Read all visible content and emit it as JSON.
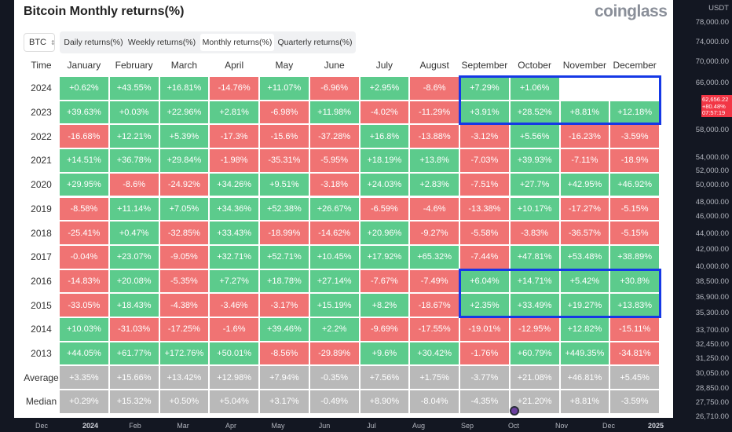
{
  "header": {
    "title": "Bitcoin Monthly returns(%)",
    "logo": "coinglass"
  },
  "selector": {
    "label": "BTC"
  },
  "tabs": [
    "Daily returns(%)",
    "Weekly returns(%)",
    "Monthly returns(%)",
    "Quarterly returns(%)"
  ],
  "active_tab": 2,
  "table": {
    "columns": [
      "Time",
      "January",
      "February",
      "March",
      "April",
      "May",
      "June",
      "July",
      "August",
      "September",
      "October",
      "November",
      "December"
    ],
    "rows": [
      {
        "label": "2024",
        "cells": [
          "+0.62%",
          "+43.55%",
          "+16.81%",
          "-14.76%",
          "+11.07%",
          "-6.96%",
          "+2.95%",
          "-8.6%",
          "+7.29%",
          "+1.06%",
          null,
          null
        ]
      },
      {
        "label": "2023",
        "cells": [
          "+39.63%",
          "+0.03%",
          "+22.96%",
          "+2.81%",
          "-6.98%",
          "+11.98%",
          "-4.02%",
          "-11.29%",
          "+3.91%",
          "+28.52%",
          "+8.81%",
          "+12.18%"
        ]
      },
      {
        "label": "2022",
        "cells": [
          "-16.68%",
          "+12.21%",
          "+5.39%",
          "-17.3%",
          "-15.6%",
          "-37.28%",
          "+16.8%",
          "-13.88%",
          "-3.12%",
          "+5.56%",
          "-16.23%",
          "-3.59%"
        ]
      },
      {
        "label": "2021",
        "cells": [
          "+14.51%",
          "+36.78%",
          "+29.84%",
          "-1.98%",
          "-35.31%",
          "-5.95%",
          "+18.19%",
          "+13.8%",
          "-7.03%",
          "+39.93%",
          "-7.11%",
          "-18.9%"
        ]
      },
      {
        "label": "2020",
        "cells": [
          "+29.95%",
          "-8.6%",
          "-24.92%",
          "+34.26%",
          "+9.51%",
          "-3.18%",
          "+24.03%",
          "+2.83%",
          "-7.51%",
          "+27.7%",
          "+42.95%",
          "+46.92%"
        ]
      },
      {
        "label": "2019",
        "cells": [
          "-8.58%",
          "+11.14%",
          "+7.05%",
          "+34.36%",
          "+52.38%",
          "+26.67%",
          "-6.59%",
          "-4.6%",
          "-13.38%",
          "+10.17%",
          "-17.27%",
          "-5.15%"
        ]
      },
      {
        "label": "2018",
        "cells": [
          "-25.41%",
          "+0.47%",
          "-32.85%",
          "+33.43%",
          "-18.99%",
          "-14.62%",
          "+20.96%",
          "-9.27%",
          "-5.58%",
          "-3.83%",
          "-36.57%",
          "-5.15%"
        ]
      },
      {
        "label": "2017",
        "cells": [
          "-0.04%",
          "+23.07%",
          "-9.05%",
          "+32.71%",
          "+52.71%",
          "+10.45%",
          "+17.92%",
          "+65.32%",
          "-7.44%",
          "+47.81%",
          "+53.48%",
          "+38.89%"
        ]
      },
      {
        "label": "2016",
        "cells": [
          "-14.83%",
          "+20.08%",
          "-5.35%",
          "+7.27%",
          "+18.78%",
          "+27.14%",
          "-7.67%",
          "-7.49%",
          "+6.04%",
          "+14.71%",
          "+5.42%",
          "+30.8%"
        ]
      },
      {
        "label": "2015",
        "cells": [
          "-33.05%",
          "+18.43%",
          "-4.38%",
          "-3.46%",
          "-3.17%",
          "+15.19%",
          "+8.2%",
          "-18.67%",
          "+2.35%",
          "+33.49%",
          "+19.27%",
          "+13.83%"
        ]
      },
      {
        "label": "2014",
        "cells": [
          "+10.03%",
          "-31.03%",
          "-17.25%",
          "-1.6%",
          "+39.46%",
          "+2.2%",
          "-9.69%",
          "-17.55%",
          "-19.01%",
          "-12.95%",
          "+12.82%",
          "-15.11%"
        ]
      },
      {
        "label": "2013",
        "cells": [
          "+44.05%",
          "+61.77%",
          "+172.76%",
          "+50.01%",
          "-8.56%",
          "-29.89%",
          "+9.6%",
          "+30.42%",
          "-1.76%",
          "+60.79%",
          "+449.35%",
          "-34.81%"
        ]
      }
    ],
    "summary_rows": [
      {
        "label": "Average",
        "cells": [
          "+3.35%",
          "+15.66%",
          "+13.42%",
          "+12.98%",
          "+7.94%",
          "-0.35%",
          "+7.56%",
          "+1.75%",
          "-3.77%",
          "+21.08%",
          "+46.81%",
          "+5.45%"
        ]
      },
      {
        "label": "Median",
        "cells": [
          "+0.29%",
          "+15.32%",
          "+0.50%",
          "+5.04%",
          "+3.17%",
          "-0.49%",
          "+8.90%",
          "-8.04%",
          "-4.35%",
          "+21.20%",
          "+8.81%",
          "-3.59%"
        ]
      }
    ]
  },
  "price_axis": {
    "unit": "USDT",
    "labels": [
      "78,000.00",
      "74,000.00",
      "70,000.00",
      "66,000.00",
      "58,000.00",
      "54,000.00",
      "52,000.00",
      "50,000.00",
      "48,000.00",
      "46,000.00",
      "44,000.00",
      "42,000.00",
      "40,000.00",
      "38,500.00",
      "36,900.00",
      "35,300.00",
      "33,700.00",
      "32,450.00",
      "31,250.00",
      "30,050.00",
      "28,850.00",
      "27,750.00",
      "26,710.00"
    ],
    "badge": [
      "62,656.22",
      "+80.48%",
      "07:57:19"
    ]
  },
  "time_axis": {
    "labels": [
      "Dec",
      "2024",
      "Feb",
      "Mar",
      "Apr",
      "May",
      "Jun",
      "Jul",
      "Aug",
      "Sep",
      "Oct",
      "Nov",
      "Dec",
      "2025"
    ]
  }
}
